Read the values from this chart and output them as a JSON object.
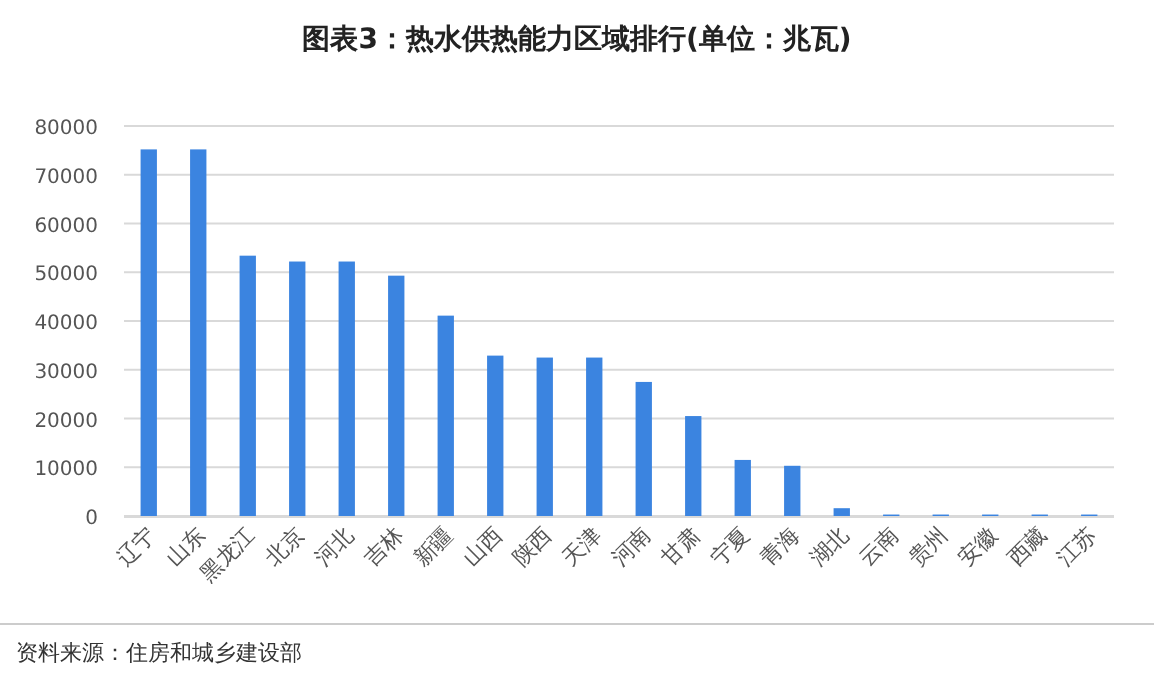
{
  "chart_data": {
    "type": "bar",
    "title": "图表3：热水供热能力区域排行(单位：兆瓦)",
    "categories": [
      "辽宁",
      "山东",
      "黑龙江",
      "北京",
      "河北",
      "吉林",
      "新疆",
      "山西",
      "陕西",
      "天津",
      "河南",
      "甘肃",
      "宁夏",
      "青海",
      "湖北",
      "云南",
      "贵州",
      "安徽",
      "西藏",
      "江苏"
    ],
    "values": [
      75200,
      75200,
      53400,
      52200,
      52200,
      49300,
      41100,
      32900,
      32500,
      32500,
      27500,
      20500,
      11500,
      10300,
      1600,
      300,
      300,
      300,
      300,
      300
    ],
    "color": "#3b84e0",
    "ylim": [
      0,
      80000
    ],
    "yticks": [
      0,
      10000,
      20000,
      30000,
      40000,
      50000,
      60000,
      70000,
      80000
    ],
    "grid": "y",
    "annotations": [
      "资料来源：住房和城乡建设部"
    ]
  }
}
